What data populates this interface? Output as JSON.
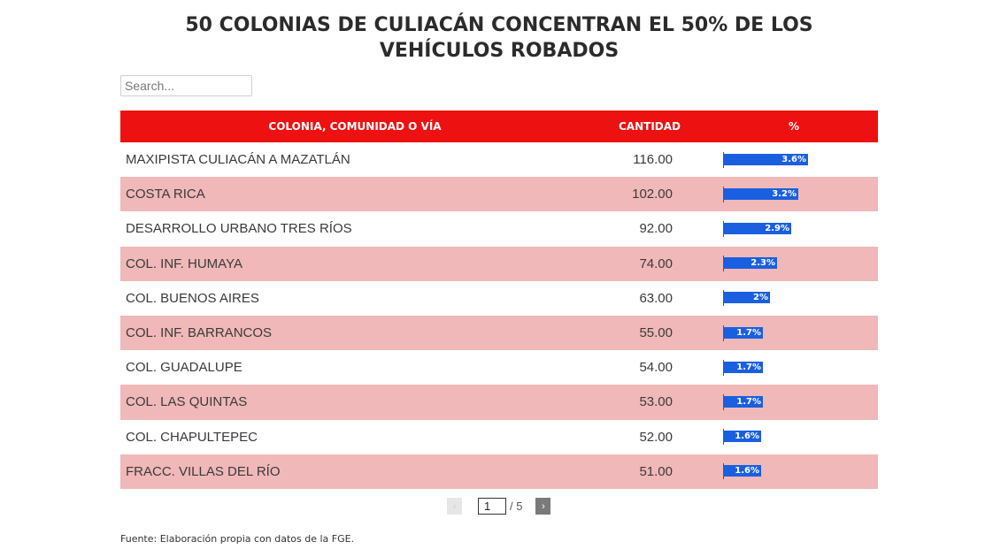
{
  "title": "50 COLONIAS DE CULIACÁN CONCENTRAN EL 50% DE LOS VEHÍCULOS ROBADOS",
  "search": {
    "placeholder": "Search...",
    "value": ""
  },
  "table": {
    "headers": [
      "COLONIA, COMUNIDAD O VÍA",
      "CANTIDAD",
      "%"
    ],
    "rows": [
      {
        "name": "MAXIPISTA CULIACÁN A MAZATLÁN",
        "qty": "116.00",
        "pct": "3.6%",
        "pct_value": 3.6
      },
      {
        "name": "COSTA RICA",
        "qty": "102.00",
        "pct": "3.2%",
        "pct_value": 3.2
      },
      {
        "name": "DESARROLLO URBANO TRES RÍOS",
        "qty": "92.00",
        "pct": "2.9%",
        "pct_value": 2.9
      },
      {
        "name": "COL. INF. HUMAYA",
        "qty": "74.00",
        "pct": "2.3%",
        "pct_value": 2.3
      },
      {
        "name": "COL. BUENOS AIRES",
        "qty": "63.00",
        "pct": "2%",
        "pct_value": 2.0
      },
      {
        "name": "COL. INF. BARRANCOS",
        "qty": "55.00",
        "pct": "1.7%",
        "pct_value": 1.7
      },
      {
        "name": "COL. GUADALUPE",
        "qty": "54.00",
        "pct": "1.7%",
        "pct_value": 1.7
      },
      {
        "name": "COL. LAS QUINTAS",
        "qty": "53.00",
        "pct": "1.7%",
        "pct_value": 1.7
      },
      {
        "name": "COL. CHAPULTEPEC",
        "qty": "52.00",
        "pct": "1.6%",
        "pct_value": 1.6
      },
      {
        "name": "FRACC. VILLAS DEL RÍO",
        "qty": "51.00",
        "pct": "1.6%",
        "pct_value": 1.6
      }
    ]
  },
  "pagination": {
    "current": "1",
    "total_label": "/ 5",
    "prev_icon": "‹",
    "next_icon": "›"
  },
  "source": "Fuente: Elaboración propia con datos de la FGE.",
  "colors": {
    "header": "#ee1111",
    "row_alt": "#f0b8b8",
    "bar": "#1a5fe0"
  }
}
